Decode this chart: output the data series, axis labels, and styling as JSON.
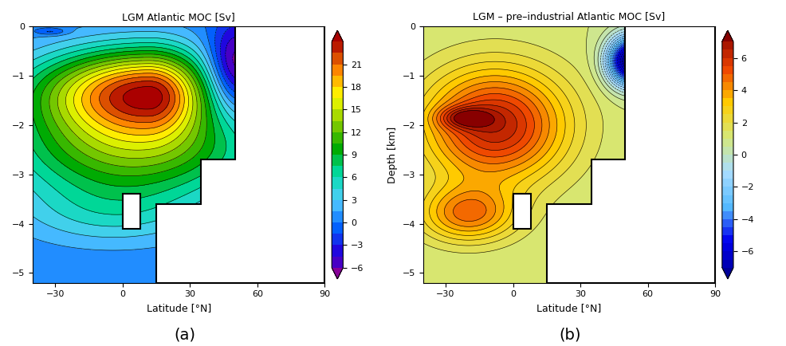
{
  "title_a": "LGM Atlantic MOC [Sv]",
  "title_b": "LGM – pre–industrial Atlantic MOC [Sv]",
  "xlabel": "Latitude [°N]",
  "ylabel_b": "Depth [km]",
  "caption_a": "(a)",
  "caption_b": "(b)",
  "xlim": [
    -40,
    90
  ],
  "ylim": [
    -5.2,
    0
  ],
  "xticks": [
    -30,
    0,
    30,
    60,
    90
  ],
  "yticks": [
    0,
    -1,
    -2,
    -3,
    -4,
    -5
  ],
  "cbar_ticks_a": [
    -6,
    -3,
    0,
    3,
    6,
    9,
    12,
    15,
    18,
    21
  ],
  "cbar_ticks_b": [
    -6,
    -4,
    -2,
    0,
    2,
    4,
    6
  ],
  "figsize": [
    9.87,
    4.34
  ],
  "dpi": 100
}
